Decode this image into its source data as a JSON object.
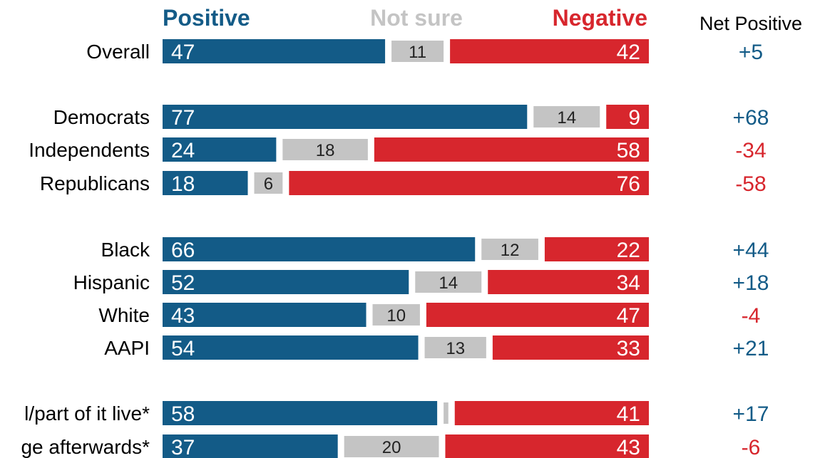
{
  "chart_data": {
    "type": "bar",
    "stacked": true,
    "orientation": "horizontal",
    "headers": {
      "positive": "Positive",
      "not_sure": "Not sure",
      "negative": "Negative",
      "net": "Net Positive"
    },
    "colors": {
      "positive": "#135b87",
      "not_sure": "#c4c4c4",
      "negative": "#d7262d",
      "net_positive_text": "#135b87",
      "net_negative_text": "#d7262d"
    },
    "rows": [
      {
        "label": "Overall",
        "positive": 47,
        "not_sure": 11,
        "negative": 42,
        "net": "+5"
      },
      {
        "label": "Democrats",
        "positive": 77,
        "not_sure": 14,
        "negative": 9,
        "net": "+68"
      },
      {
        "label": "Independents",
        "positive": 24,
        "not_sure": 18,
        "negative": 58,
        "net": "-34"
      },
      {
        "label": "Republicans",
        "positive": 18,
        "not_sure": 6,
        "negative": 76,
        "net": "-58"
      },
      {
        "label": "Black",
        "positive": 66,
        "not_sure": 12,
        "negative": 22,
        "net": "+44"
      },
      {
        "label": "Hispanic",
        "positive": 52,
        "not_sure": 14,
        "negative": 34,
        "net": "+18"
      },
      {
        "label": "White",
        "positive": 43,
        "not_sure": 10,
        "negative": 47,
        "net": "-4"
      },
      {
        "label": "AAPI",
        "positive": 54,
        "not_sure": 13,
        "negative": 33,
        "net": "+21"
      },
      {
        "label": "l/part of it live*",
        "positive": 58,
        "not_sure": 1,
        "negative": 41,
        "net": "+17"
      },
      {
        "label": "ge afterwards*",
        "positive": 37,
        "not_sure": 20,
        "negative": 43,
        "net": "-6"
      }
    ]
  }
}
